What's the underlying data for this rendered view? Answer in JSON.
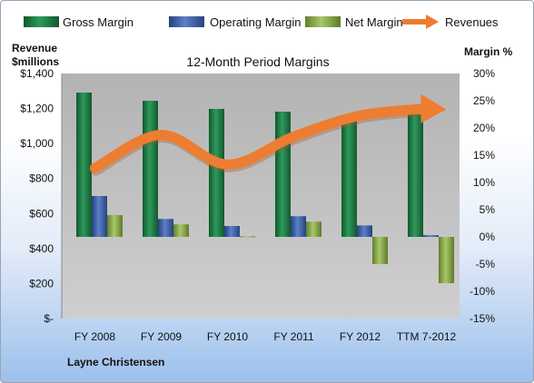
{
  "chart_data": {
    "type": "bar",
    "title": "12-Month Period Margins",
    "author": "Layne Christensen",
    "categories": [
      "FY 2008",
      "FY 2009",
      "FY 2010",
      "FY 2011",
      "FY 2012",
      "TTM 7-2012"
    ],
    "left_axis": {
      "label_line1": "Revenue",
      "label_line2": "$millions",
      "ticks": [
        "$-",
        "$200",
        "$400",
        "$600",
        "$800",
        "$1,000",
        "$1,200",
        "$1,400"
      ],
      "ylim": [
        0,
        1400
      ]
    },
    "right_axis": {
      "label": "Margin %",
      "ticks": [
        "-15%",
        "-10%",
        "-5%",
        "0%",
        "5%",
        "10%",
        "15%",
        "20%",
        "25%",
        "30%"
      ],
      "ylim": [
        -15,
        30
      ]
    },
    "series": [
      {
        "name": "Gross Margin",
        "axis": "right",
        "color": "#1f7a45",
        "values": [
          26.5,
          25.0,
          23.5,
          23.0,
          22.0,
          22.5
        ]
      },
      {
        "name": "Operating Margin",
        "axis": "right",
        "color": "#3a5fa8",
        "values": [
          7.5,
          3.3,
          2.0,
          3.8,
          2.1,
          0.3
        ]
      },
      {
        "name": "Net Margin",
        "axis": "right",
        "color": "#8cae48",
        "values": [
          4.0,
          2.3,
          0.1,
          2.8,
          -5.0,
          -8.5
        ]
      },
      {
        "name": "Revenues",
        "axis": "left",
        "type": "line",
        "color": "#ed7d31",
        "values": [
          860,
          1050,
          880,
          1040,
          1160,
          1200
        ]
      }
    ],
    "legend_position": "top",
    "grid": false
  }
}
